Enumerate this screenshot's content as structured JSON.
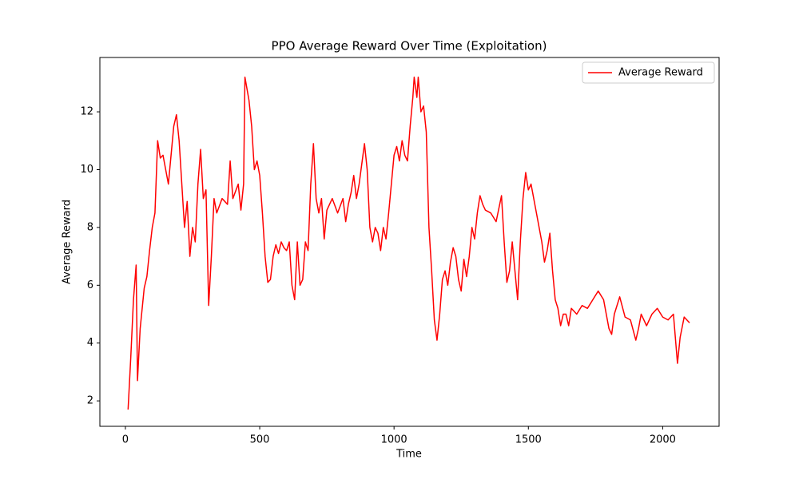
{
  "chart_data": {
    "type": "line",
    "title": "PPO Average Reward Over Time (Exploitation)",
    "x_label": "Time",
    "y_label": "Average Reward",
    "x": [
      10,
      20,
      30,
      40,
      45,
      55,
      70,
      80,
      90,
      100,
      110,
      120,
      130,
      140,
      150,
      160,
      170,
      180,
      190,
      200,
      210,
      220,
      230,
      240,
      250,
      260,
      270,
      280,
      290,
      300,
      310,
      320,
      330,
      340,
      360,
      380,
      390,
      400,
      420,
      430,
      440,
      445,
      460,
      470,
      480,
      490,
      500,
      510,
      520,
      530,
      540,
      550,
      560,
      570,
      580,
      590,
      600,
      610,
      620,
      630,
      640,
      650,
      660,
      670,
      680,
      690,
      700,
      710,
      720,
      730,
      740,
      750,
      770,
      790,
      810,
      820,
      830,
      840,
      850,
      860,
      870,
      890,
      900,
      910,
      920,
      930,
      940,
      950,
      960,
      970,
      980,
      990,
      1000,
      1010,
      1020,
      1030,
      1040,
      1050,
      1060,
      1070,
      1075,
      1085,
      1090,
      1100,
      1110,
      1120,
      1130,
      1140,
      1150,
      1160,
      1170,
      1180,
      1190,
      1200,
      1210,
      1220,
      1230,
      1240,
      1250,
      1260,
      1270,
      1280,
      1290,
      1300,
      1310,
      1320,
      1330,
      1340,
      1360,
      1380,
      1400,
      1410,
      1420,
      1430,
      1440,
      1450,
      1460,
      1470,
      1480,
      1490,
      1500,
      1510,
      1520,
      1530,
      1540,
      1550,
      1560,
      1570,
      1580,
      1590,
      1600,
      1610,
      1620,
      1630,
      1640,
      1650,
      1660,
      1680,
      1700,
      1720,
      1740,
      1760,
      1780,
      1800,
      1810,
      1820,
      1840,
      1860,
      1880,
      1900,
      1910,
      1920,
      1940,
      1960,
      1980,
      2000,
      2020,
      2040,
      2055,
      2065,
      2080,
      2100
    ],
    "series": [
      {
        "name": "Average Reward",
        "color": "#ff0000",
        "values": [
          1.7,
          3.5,
          5.5,
          6.7,
          2.7,
          4.5,
          5.9,
          6.3,
          7.2,
          8.0,
          8.5,
          11.0,
          10.4,
          10.5,
          10.0,
          9.5,
          10.5,
          11.5,
          11.9,
          11.0,
          9.5,
          8.0,
          8.9,
          7.0,
          8.0,
          7.5,
          9.5,
          10.7,
          9.0,
          9.3,
          5.3,
          7.0,
          9.0,
          8.5,
          9.0,
          8.8,
          10.3,
          9.0,
          9.5,
          8.6,
          9.5,
          13.2,
          12.4,
          11.5,
          10.0,
          10.3,
          9.8,
          8.5,
          7.0,
          6.1,
          6.2,
          7.0,
          7.4,
          7.1,
          7.5,
          7.3,
          7.2,
          7.5,
          6.0,
          5.5,
          7.5,
          6.0,
          6.2,
          7.5,
          7.2,
          9.5,
          10.9,
          9.0,
          8.5,
          9.0,
          7.6,
          8.6,
          9.0,
          8.5,
          9.0,
          8.2,
          8.8,
          9.2,
          9.8,
          9.0,
          9.5,
          10.9,
          10.0,
          8.0,
          7.5,
          8.0,
          7.8,
          7.2,
          8.0,
          7.6,
          8.5,
          9.5,
          10.5,
          10.8,
          10.3,
          11.0,
          10.5,
          10.3,
          11.5,
          12.5,
          13.2,
          12.5,
          13.2,
          12.0,
          12.2,
          11.3,
          8.0,
          6.5,
          4.8,
          4.1,
          5.0,
          6.2,
          6.5,
          6.0,
          6.8,
          7.3,
          7.0,
          6.2,
          5.8,
          6.9,
          6.3,
          7.0,
          8.0,
          7.6,
          8.5,
          9.1,
          8.8,
          8.6,
          8.5,
          8.2,
          9.1,
          7.5,
          6.1,
          6.5,
          7.5,
          6.5,
          5.5,
          7.5,
          9.0,
          9.9,
          9.3,
          9.5,
          9.0,
          8.5,
          8.0,
          7.5,
          6.8,
          7.2,
          7.8,
          6.5,
          5.5,
          5.2,
          4.6,
          5.0,
          5.0,
          4.6,
          5.2,
          5.0,
          5.3,
          5.2,
          5.5,
          5.8,
          5.5,
          4.5,
          4.3,
          5.0,
          5.6,
          4.9,
          4.8,
          4.1,
          4.5,
          5.0,
          4.6,
          5.0,
          5.2,
          4.9,
          4.8,
          5.0,
          3.3,
          4.2,
          4.9,
          4.7
        ]
      }
    ],
    "xlim": [
      -95,
      2210
    ],
    "ylim": [
      1.12,
      13.88
    ],
    "xticks": [
      0,
      500,
      1000,
      1500,
      2000
    ],
    "yticks": [
      2,
      4,
      6,
      8,
      10,
      12
    ],
    "grid": false,
    "legend": "upper right"
  }
}
